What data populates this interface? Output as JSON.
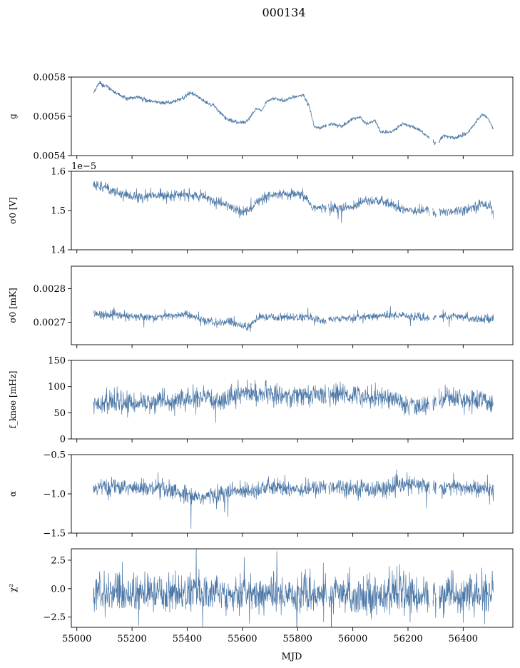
{
  "chart_data": {
    "type": "line",
    "title": "000134",
    "xlabel": "MJD",
    "xlim": [
      54980,
      56580
    ],
    "xticks": [
      55000,
      55200,
      55400,
      55600,
      55800,
      56000,
      56200,
      56400
    ],
    "xtick_labels": [
      "55000",
      "55200",
      "55400",
      "55600",
      "55800",
      "56000",
      "56200",
      "56400"
    ],
    "x_start": 55060,
    "x_end": 56510,
    "color": "#4c78a8",
    "panels": [
      {
        "id": "g",
        "ylabel": "g",
        "ylim": [
          0.0054,
          0.0058
        ],
        "yticks": [
          0.0054,
          0.0056,
          0.0058
        ],
        "ytick_labels": [
          "0.0054",
          "0.0056",
          "0.0058"
        ],
        "offset_text": "",
        "noise": 4.5e-06,
        "trend": [
          [
            55060,
            0.00572
          ],
          [
            55080,
            0.00577
          ],
          [
            55110,
            0.00575
          ],
          [
            55140,
            0.00572
          ],
          [
            55180,
            0.00569
          ],
          [
            55220,
            0.0057
          ],
          [
            55260,
            0.00568
          ],
          [
            55300,
            0.00567
          ],
          [
            55340,
            0.00567
          ],
          [
            55380,
            0.00569
          ],
          [
            55410,
            0.00572
          ],
          [
            55440,
            0.0057
          ],
          [
            55470,
            0.00567
          ],
          [
            55500,
            0.00565
          ],
          [
            55540,
            0.00559
          ],
          [
            55580,
            0.00557
          ],
          [
            55610,
            0.00557
          ],
          [
            55630,
            0.0056
          ],
          [
            55650,
            0.00564
          ],
          [
            55670,
            0.00563
          ],
          [
            55690,
            0.00568
          ],
          [
            55720,
            0.00569
          ],
          [
            55750,
            0.00568
          ],
          [
            55790,
            0.0057
          ],
          [
            55820,
            0.00571
          ],
          [
            55840,
            0.00566
          ],
          [
            55860,
            0.00555
          ],
          [
            55880,
            0.00554
          ],
          [
            55920,
            0.00556
          ],
          [
            55960,
            0.00555
          ],
          [
            56000,
            0.00559
          ],
          [
            56030,
            0.00559
          ],
          [
            56050,
            0.00556
          ],
          [
            56080,
            0.00558
          ],
          [
            56100,
            0.00552
          ],
          [
            56140,
            0.00552
          ],
          [
            56180,
            0.00556
          ],
          [
            56210,
            0.00555
          ],
          [
            56240,
            0.00553
          ],
          [
            56280,
            0.00549
          ],
          [
            56300,
            0.00546
          ],
          [
            56330,
            0.0055
          ],
          [
            56370,
            0.00549
          ],
          [
            56410,
            0.00551
          ],
          [
            56440,
            0.00556
          ],
          [
            56470,
            0.00561
          ],
          [
            56490,
            0.00559
          ],
          [
            56510,
            0.00553
          ]
        ]
      },
      {
        "id": "sigma0_v",
        "ylabel": "σ0 [V]",
        "ylim": [
          1.4,
          1.6
        ],
        "yticks": [
          1.4,
          1.5,
          1.6
        ],
        "ytick_labels": [
          "1.4",
          "1.5",
          "1.6"
        ],
        "offset_text": "1e−5",
        "noise": 0.0065,
        "trend": [
          [
            55060,
            1.566
          ],
          [
            55100,
            1.562
          ],
          [
            55140,
            1.548
          ],
          [
            55200,
            1.535
          ],
          [
            55250,
            1.535
          ],
          [
            55300,
            1.54
          ],
          [
            55350,
            1.54
          ],
          [
            55400,
            1.54
          ],
          [
            55450,
            1.535
          ],
          [
            55500,
            1.525
          ],
          [
            55550,
            1.512
          ],
          [
            55580,
            1.5
          ],
          [
            55620,
            1.498
          ],
          [
            55650,
            1.52
          ],
          [
            55680,
            1.53
          ],
          [
            55720,
            1.54
          ],
          [
            55760,
            1.54
          ],
          [
            55800,
            1.54
          ],
          [
            55830,
            1.535
          ],
          [
            55850,
            1.51
          ],
          [
            55880,
            1.505
          ],
          [
            55920,
            1.508
          ],
          [
            55960,
            1.505
          ],
          [
            56000,
            1.508
          ],
          [
            56040,
            1.528
          ],
          [
            56080,
            1.525
          ],
          [
            56120,
            1.52
          ],
          [
            56160,
            1.508
          ],
          [
            56200,
            1.502
          ],
          [
            56240,
            1.5
          ],
          [
            56280,
            1.5
          ],
          [
            56300,
            1.492
          ],
          [
            56340,
            1.498
          ],
          [
            56380,
            1.5
          ],
          [
            56420,
            1.505
          ],
          [
            56460,
            1.515
          ],
          [
            56500,
            1.515
          ],
          [
            56510,
            1.49
          ]
        ]
      },
      {
        "id": "sigma0_mk",
        "ylabel": "σ0 [mK]",
        "ylim": [
          0.002633,
          0.002867
        ],
        "yticks": [
          0.0027,
          0.0028
        ],
        "ytick_labels": [
          "0.0027",
          "0.0028"
        ],
        "offset_text": "",
        "noise": 6.2e-06,
        "trend": [
          [
            55060,
            0.002724
          ],
          [
            55120,
            0.002722
          ],
          [
            55200,
            0.002716
          ],
          [
            55300,
            0.002716
          ],
          [
            55400,
            0.002724
          ],
          [
            55430,
            0.002712
          ],
          [
            55500,
            0.002698
          ],
          [
            55560,
            0.0027
          ],
          [
            55620,
            0.002685
          ],
          [
            55660,
            0.002715
          ],
          [
            55720,
            0.002715
          ],
          [
            55800,
            0.002715
          ],
          [
            55860,
            0.002712
          ],
          [
            55900,
            0.002702
          ],
          [
            55960,
            0.002715
          ],
          [
            56000,
            0.002712
          ],
          [
            56060,
            0.002718
          ],
          [
            56120,
            0.00272
          ],
          [
            56180,
            0.002722
          ],
          [
            56230,
            0.002715
          ],
          [
            56280,
            0.002712
          ],
          [
            56320,
            0.002718
          ],
          [
            56400,
            0.002715
          ],
          [
            56460,
            0.00271
          ],
          [
            56510,
            0.002712
          ]
        ]
      },
      {
        "id": "fknee",
        "ylabel": "f_knee [mHz]",
        "ylim": [
          0,
          150
        ],
        "yticks": [
          0,
          50,
          100,
          150
        ],
        "ytick_labels": [
          "0",
          "50",
          "100",
          "150"
        ],
        "offset_text": "",
        "noise": 10,
        "trend": [
          [
            55060,
            68
          ],
          [
            55150,
            68
          ],
          [
            55250,
            70
          ],
          [
            55350,
            72
          ],
          [
            55400,
            75
          ],
          [
            55450,
            78
          ],
          [
            55500,
            74
          ],
          [
            55560,
            82
          ],
          [
            55600,
            88
          ],
          [
            55700,
            85
          ],
          [
            55800,
            82
          ],
          [
            55880,
            86
          ],
          [
            55900,
            80
          ],
          [
            55940,
            85
          ],
          [
            56000,
            84
          ],
          [
            56100,
            80
          ],
          [
            56160,
            75
          ],
          [
            56200,
            62
          ],
          [
            56250,
            60
          ],
          [
            56300,
            72
          ],
          [
            56340,
            82
          ],
          [
            56400,
            76
          ],
          [
            56510,
            70
          ]
        ]
      },
      {
        "id": "alpha",
        "ylabel": "α",
        "ylim": [
          -1.5,
          -0.5
        ],
        "yticks": [
          -1.5,
          -1.0,
          -0.5
        ],
        "ytick_labels": [
          "−1.5",
          "−1.0",
          "−0.5"
        ],
        "offset_text": "",
        "noise": 0.055,
        "trend": [
          [
            55060,
            -0.92
          ],
          [
            55200,
            -0.92
          ],
          [
            55300,
            -0.95
          ],
          [
            55400,
            -1.0
          ],
          [
            55450,
            -1.05
          ],
          [
            55550,
            -0.98
          ],
          [
            55700,
            -0.92
          ],
          [
            55850,
            -0.94
          ],
          [
            55920,
            -0.9
          ],
          [
            56000,
            -0.92
          ],
          [
            56100,
            -0.94
          ],
          [
            56200,
            -0.88
          ],
          [
            56260,
            -0.9
          ],
          [
            56400,
            -0.92
          ],
          [
            56510,
            -0.96
          ]
        ]
      },
      {
        "id": "chi2",
        "ylabel": "χ²",
        "ylim": [
          -3.4,
          3.5
        ],
        "yticks": [
          -2.5,
          0.0,
          2.5
        ],
        "ytick_labels": [
          "−2.5",
          "0.0",
          "2.5"
        ],
        "offset_text": "",
        "noise": 0.85,
        "trend": [
          [
            55060,
            -0.45
          ],
          [
            55300,
            -0.4
          ],
          [
            55500,
            -0.35
          ],
          [
            55700,
            -0.45
          ],
          [
            55900,
            -0.55
          ],
          [
            56100,
            -0.55
          ],
          [
            56300,
            -0.6
          ],
          [
            56510,
            -0.55
          ]
        ]
      }
    ],
    "gaps": [
      [
        55905,
        55912
      ],
      [
        56278,
        56290
      ],
      [
        56302,
        56312
      ]
    ]
  }
}
